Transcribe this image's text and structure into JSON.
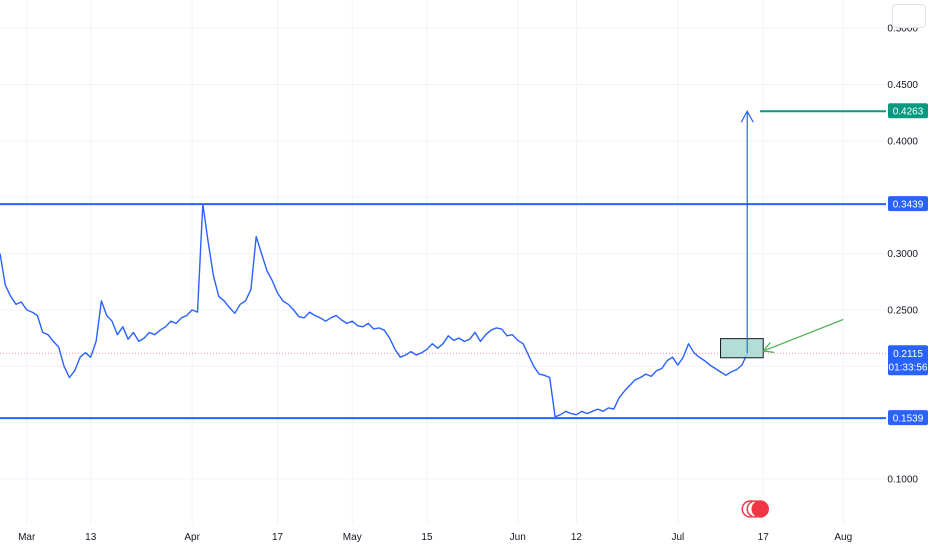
{
  "chart_data": {
    "type": "line",
    "title": "",
    "xlabel": "",
    "ylabel": "",
    "grid": true,
    "y_axis": {
      "side": "right",
      "range": [
        0.06,
        0.525
      ],
      "ticks": [
        {
          "value": 0.5,
          "label": "0.5000"
        },
        {
          "value": 0.45,
          "label": "0.4500"
        },
        {
          "value": 0.4,
          "label": "0.4000"
        },
        {
          "value": 0.3,
          "label": "0.3000"
        },
        {
          "value": 0.25,
          "label": "0.2500"
        },
        {
          "value": 0.1,
          "label": "0.1000"
        }
      ]
    },
    "x_axis": {
      "range": [
        "2023-02-24",
        "2023-08-09"
      ],
      "ticks": [
        {
          "date": "2023-03-01",
          "label": "Mar"
        },
        {
          "date": "2023-03-13",
          "label": "13"
        },
        {
          "date": "2023-04-01",
          "label": "Apr"
        },
        {
          "date": "2023-04-17",
          "label": "17"
        },
        {
          "date": "2023-05-01",
          "label": "May"
        },
        {
          "date": "2023-05-15",
          "label": "15"
        },
        {
          "date": "2023-06-01",
          "label": "Jun"
        },
        {
          "date": "2023-06-12",
          "label": "12"
        },
        {
          "date": "2023-07-01",
          "label": "Jul"
        },
        {
          "date": "2023-07-17",
          "label": "17"
        },
        {
          "date": "2023-08-01",
          "label": "Aug"
        }
      ]
    },
    "series": [
      {
        "color": "#2962ff",
        "points": [
          [
            "2023-02-24",
            0.3
          ],
          [
            "2023-02-25",
            0.272
          ],
          [
            "2023-02-26",
            0.262
          ],
          [
            "2023-02-27",
            0.255
          ],
          [
            "2023-02-28",
            0.257
          ],
          [
            "2023-03-01",
            0.25
          ],
          [
            "2023-03-02",
            0.248
          ],
          [
            "2023-03-03",
            0.245
          ],
          [
            "2023-03-04",
            0.23
          ],
          [
            "2023-03-05",
            0.228
          ],
          [
            "2023-03-06",
            0.222
          ],
          [
            "2023-03-07",
            0.217
          ],
          [
            "2023-03-08",
            0.2
          ],
          [
            "2023-03-09",
            0.19
          ],
          [
            "2023-03-10",
            0.196
          ],
          [
            "2023-03-11",
            0.208
          ],
          [
            "2023-03-12",
            0.212
          ],
          [
            "2023-03-13",
            0.208
          ],
          [
            "2023-03-14",
            0.222
          ],
          [
            "2023-03-15",
            0.258
          ],
          [
            "2023-03-16",
            0.245
          ],
          [
            "2023-03-17",
            0.24
          ],
          [
            "2023-03-18",
            0.228
          ],
          [
            "2023-03-19",
            0.235
          ],
          [
            "2023-03-20",
            0.224
          ],
          [
            "2023-03-21",
            0.23
          ],
          [
            "2023-03-22",
            0.222
          ],
          [
            "2023-03-23",
            0.225
          ],
          [
            "2023-03-24",
            0.23
          ],
          [
            "2023-03-25",
            0.228
          ],
          [
            "2023-03-26",
            0.232
          ],
          [
            "2023-03-27",
            0.235
          ],
          [
            "2023-03-28",
            0.24
          ],
          [
            "2023-03-29",
            0.238
          ],
          [
            "2023-03-30",
            0.243
          ],
          [
            "2023-03-31",
            0.245
          ],
          [
            "2023-04-01",
            0.25
          ],
          [
            "2023-04-02",
            0.248
          ],
          [
            "2023-04-03",
            0.344
          ],
          [
            "2023-04-04",
            0.31
          ],
          [
            "2023-04-05",
            0.28
          ],
          [
            "2023-04-06",
            0.262
          ],
          [
            "2023-04-07",
            0.258
          ],
          [
            "2023-04-08",
            0.252
          ],
          [
            "2023-04-09",
            0.247
          ],
          [
            "2023-04-10",
            0.255
          ],
          [
            "2023-04-11",
            0.258
          ],
          [
            "2023-04-12",
            0.268
          ],
          [
            "2023-04-13",
            0.315
          ],
          [
            "2023-04-14",
            0.3
          ],
          [
            "2023-04-15",
            0.285
          ],
          [
            "2023-04-16",
            0.276
          ],
          [
            "2023-04-17",
            0.265
          ],
          [
            "2023-04-18",
            0.258
          ],
          [
            "2023-04-19",
            0.255
          ],
          [
            "2023-04-20",
            0.25
          ],
          [
            "2023-04-21",
            0.244
          ],
          [
            "2023-04-22",
            0.243
          ],
          [
            "2023-04-23",
            0.248
          ],
          [
            "2023-04-24",
            0.245
          ],
          [
            "2023-04-25",
            0.243
          ],
          [
            "2023-04-26",
            0.24
          ],
          [
            "2023-04-27",
            0.243
          ],
          [
            "2023-04-28",
            0.245
          ],
          [
            "2023-04-29",
            0.241
          ],
          [
            "2023-04-30",
            0.238
          ],
          [
            "2023-05-01",
            0.24
          ],
          [
            "2023-05-02",
            0.236
          ],
          [
            "2023-05-03",
            0.235
          ],
          [
            "2023-05-04",
            0.238
          ],
          [
            "2023-05-05",
            0.233
          ],
          [
            "2023-05-06",
            0.234
          ],
          [
            "2023-05-07",
            0.232
          ],
          [
            "2023-05-08",
            0.225
          ],
          [
            "2023-05-09",
            0.215
          ],
          [
            "2023-05-10",
            0.208
          ],
          [
            "2023-05-11",
            0.21
          ],
          [
            "2023-05-12",
            0.213
          ],
          [
            "2023-05-13",
            0.21
          ],
          [
            "2023-05-14",
            0.212
          ],
          [
            "2023-05-15",
            0.215
          ],
          [
            "2023-05-16",
            0.22
          ],
          [
            "2023-05-17",
            0.216
          ],
          [
            "2023-05-18",
            0.22
          ],
          [
            "2023-05-19",
            0.227
          ],
          [
            "2023-05-20",
            0.223
          ],
          [
            "2023-05-21",
            0.225
          ],
          [
            "2023-05-22",
            0.222
          ],
          [
            "2023-05-23",
            0.224
          ],
          [
            "2023-05-24",
            0.23
          ],
          [
            "2023-05-25",
            0.222
          ],
          [
            "2023-05-26",
            0.228
          ],
          [
            "2023-05-27",
            0.232
          ],
          [
            "2023-05-28",
            0.234
          ],
          [
            "2023-05-29",
            0.233
          ],
          [
            "2023-05-30",
            0.227
          ],
          [
            "2023-05-31",
            0.228
          ],
          [
            "2023-06-01",
            0.223
          ],
          [
            "2023-06-02",
            0.22
          ],
          [
            "2023-06-03",
            0.21
          ],
          [
            "2023-06-04",
            0.2
          ],
          [
            "2023-06-05",
            0.193
          ],
          [
            "2023-06-06",
            0.192
          ],
          [
            "2023-06-07",
            0.19
          ],
          [
            "2023-06-08",
            0.155
          ],
          [
            "2023-06-09",
            0.157
          ],
          [
            "2023-06-10",
            0.16
          ],
          [
            "2023-06-11",
            0.158
          ],
          [
            "2023-06-12",
            0.157
          ],
          [
            "2023-06-13",
            0.16
          ],
          [
            "2023-06-14",
            0.158
          ],
          [
            "2023-06-15",
            0.16
          ],
          [
            "2023-06-16",
            0.162
          ],
          [
            "2023-06-17",
            0.16
          ],
          [
            "2023-06-18",
            0.163
          ],
          [
            "2023-06-19",
            0.162
          ],
          [
            "2023-06-20",
            0.172
          ],
          [
            "2023-06-21",
            0.178
          ],
          [
            "2023-06-22",
            0.183
          ],
          [
            "2023-06-23",
            0.188
          ],
          [
            "2023-06-24",
            0.19
          ],
          [
            "2023-06-25",
            0.193
          ],
          [
            "2023-06-26",
            0.191
          ],
          [
            "2023-06-27",
            0.196
          ],
          [
            "2023-06-28",
            0.198
          ],
          [
            "2023-06-29",
            0.205
          ],
          [
            "2023-06-30",
            0.208
          ],
          [
            "2023-07-01",
            0.201
          ],
          [
            "2023-07-02",
            0.208
          ],
          [
            "2023-07-03",
            0.22
          ],
          [
            "2023-07-04",
            0.212
          ],
          [
            "2023-07-05",
            0.208
          ],
          [
            "2023-07-06",
            0.205
          ],
          [
            "2023-07-07",
            0.201
          ],
          [
            "2023-07-08",
            0.198
          ],
          [
            "2023-07-09",
            0.195
          ],
          [
            "2023-07-10",
            0.192
          ],
          [
            "2023-07-11",
            0.195
          ],
          [
            "2023-07-12",
            0.197
          ],
          [
            "2023-07-13",
            0.201
          ],
          [
            "2023-07-14",
            0.211
          ]
        ]
      }
    ],
    "horizontal_lines": [
      {
        "value": 0.3439,
        "color": "#2962ff",
        "label": "0.3439"
      },
      {
        "value": 0.1539,
        "color": "#2962ff",
        "label": "0.1539"
      }
    ],
    "target": {
      "value": 0.4263,
      "color": "#089981",
      "label": "0.4263"
    },
    "current_price": {
      "value": 0.2115,
      "label": "0.2115",
      "countdown": "01:33:56",
      "color": "#2962ff"
    },
    "projection_arrow": {
      "x": "2023-07-14",
      "from": 0.2115,
      "to": 0.4263,
      "color": "#2962ff"
    },
    "entry_box": {
      "x0": "2023-07-09",
      "x1": "2023-07-17",
      "y0": 0.2075,
      "y1": 0.2245,
      "fill": "#a6d8d0"
    },
    "pointer_arrow": {
      "from": [
        "2023-08-01",
        0.2415
      ],
      "to": [
        "2023-07-17",
        0.2135
      ],
      "color": "#4caf50"
    },
    "event_marker_date": "2023-07-17"
  }
}
